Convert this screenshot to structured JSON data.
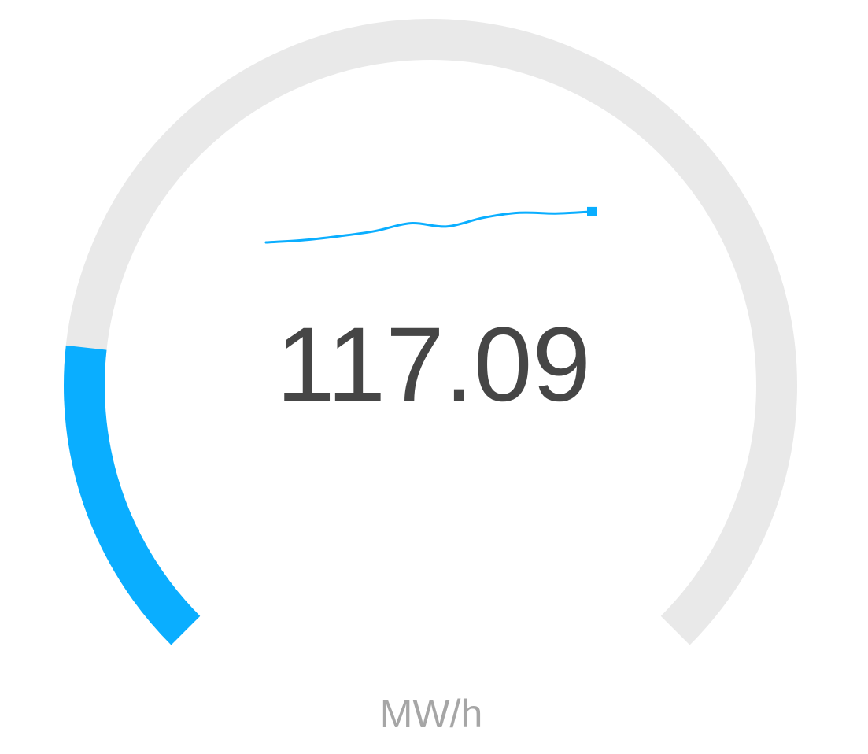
{
  "chart_data": {
    "type": "gauge",
    "value": 117.09,
    "value_text": "117.09",
    "unit": "MW/h",
    "progress_fraction": 0.19,
    "sparkline": [
      0.0,
      0.06,
      0.17,
      0.31,
      0.53,
      0.44,
      0.68,
      0.82,
      0.8,
      0.85
    ],
    "colors": {
      "accent": "#0aaeff",
      "track": "#e9e9e9",
      "value": "#464646",
      "unit": "#a6a6a6",
      "background": "#ffffff"
    }
  }
}
